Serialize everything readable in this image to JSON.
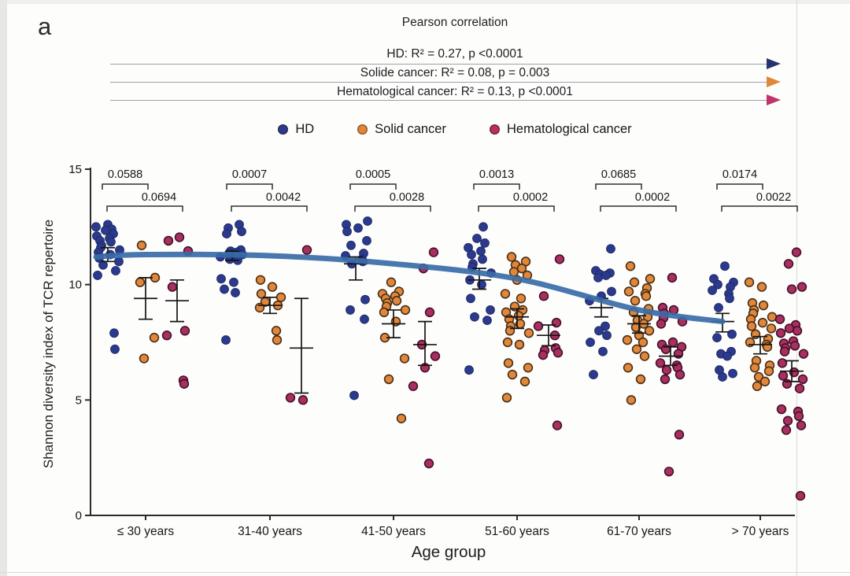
{
  "panel_label": "a",
  "header": {
    "title": "Pearson correlation",
    "arrows": [
      {
        "label": "HD: R² = 0.27,  p <0.0001",
        "color": "#27336e"
      },
      {
        "label": "Solide cancer: R² = 0.08,  p = 0.003",
        "color": "#e0873c"
      },
      {
        "label": "Hematological cancer: R² = 0.13, p <0.0001",
        "color": "#c2326b"
      }
    ]
  },
  "legend": [
    {
      "label": "HD",
      "color": "#2c3a8e"
    },
    {
      "label": "Solid cancer",
      "color": "#e0873c"
    },
    {
      "label": "Hematological cancer",
      "color": "#b82f62"
    }
  ],
  "chart_data": {
    "type": "scatter",
    "xlabel": "Age group",
    "ylabel": "Shannon diversity index of TCR repertoire",
    "ylim": [
      0,
      15
    ],
    "yticks": [
      0,
      5,
      10,
      15
    ],
    "grid": false,
    "categories": [
      "≤ 30 years",
      "31-40 years",
      "41-50 years",
      "51-60 years",
      "61-70 years",
      "> 70 years"
    ],
    "series": [
      {
        "name": "HD",
        "color": "#2c3a8e",
        "stroke": "#1f2a66",
        "points": [
          [
            12.6,
            12.5,
            12.4,
            12.35,
            12.2,
            12.1,
            12.0,
            11.9,
            11.85,
            11.7,
            11.6,
            11.5,
            11.4,
            11.3,
            11.15,
            11.0,
            10.85,
            10.6,
            10.4,
            7.9,
            7.2
          ],
          [
            12.6,
            12.45,
            12.3,
            12.2,
            11.5,
            11.45,
            11.4,
            11.35,
            11.3,
            11.25,
            11.2,
            11.15,
            11.1,
            11.05,
            10.25,
            10.1,
            9.8,
            9.65,
            7.6
          ],
          [
            12.75,
            12.6,
            12.45,
            12.3,
            11.9,
            11.7,
            11.35,
            11.25,
            11.1,
            11.0,
            10.9,
            9.35,
            8.9,
            8.5,
            5.2
          ],
          [
            12.5,
            12.0,
            11.8,
            11.6,
            11.45,
            11.3,
            11.1,
            10.9,
            10.75,
            10.5,
            10.2,
            10.0,
            9.4,
            8.9,
            8.6,
            8.45,
            6.3
          ],
          [
            11.55,
            10.6,
            10.5,
            10.45,
            10.4,
            10.3,
            9.7,
            9.5,
            9.3,
            8.2,
            8.0,
            7.8,
            7.5,
            7.1,
            6.1
          ],
          [
            10.8,
            10.25,
            10.1,
            10.0,
            9.9,
            9.75,
            9.6,
            9.4,
            9.0,
            7.85,
            7.7,
            7.1,
            7.0,
            6.9,
            6.3,
            6.15,
            6.0
          ]
        ],
        "errorbars": [
          [
            11.0,
            11.3,
            11.6
          ],
          [
            11.05,
            11.25,
            11.45
          ],
          [
            10.2,
            10.9,
            11.2
          ],
          [
            9.8,
            10.2,
            10.7
          ],
          [
            8.6,
            9.0,
            9.4
          ],
          [
            7.95,
            8.4,
            8.75
          ]
        ]
      },
      {
        "name": "Solid cancer",
        "color": "#e0873c",
        "stroke": "#4a2f15",
        "points": [
          [
            11.7,
            10.3,
            10.1,
            7.7,
            6.8
          ],
          [
            10.2,
            9.9,
            9.6,
            9.45,
            9.25,
            9.1,
            9.0,
            8.0,
            7.6
          ],
          [
            10.1,
            9.7,
            9.6,
            9.5,
            9.4,
            9.3,
            9.2,
            9.05,
            8.9,
            8.8,
            8.4,
            7.7,
            6.8,
            5.9,
            4.2
          ],
          [
            11.2,
            11.0,
            10.85,
            10.7,
            10.55,
            10.4,
            10.2,
            9.6,
            9.4,
            9.05,
            8.9,
            8.8,
            8.65,
            8.5,
            8.3,
            8.2,
            8.0,
            7.9,
            7.5,
            7.4,
            6.6,
            6.4,
            6.1,
            5.8,
            5.1
          ],
          [
            10.8,
            10.25,
            10.1,
            9.85,
            9.7,
            9.6,
            9.5,
            9.3,
            8.95,
            8.8,
            8.6,
            8.45,
            8.3,
            8.15,
            8.0,
            7.8,
            7.6,
            7.5,
            7.2,
            6.9,
            6.4,
            5.9,
            5.0
          ],
          [
            10.1,
            9.9,
            9.2,
            9.1,
            8.9,
            8.75,
            8.6,
            8.5,
            8.35,
            8.2,
            8.1,
            7.85,
            7.65,
            7.5,
            7.4,
            7.3,
            6.7,
            6.5,
            6.4,
            6.25,
            6.0,
            5.8,
            5.6
          ]
        ],
        "errorbars": [
          [
            8.5,
            9.4,
            10.3
          ],
          [
            8.75,
            9.1,
            9.45
          ],
          [
            7.7,
            8.3,
            8.9
          ],
          [
            8.1,
            8.6,
            8.95
          ],
          [
            7.9,
            8.3,
            8.65
          ],
          [
            7.0,
            7.4,
            7.75
          ]
        ]
      },
      {
        "name": "Hematological cancer",
        "color": "#a8305e",
        "stroke": "#45112b",
        "points": [
          [
            12.05,
            11.9,
            11.45,
            9.9,
            8.0,
            7.8,
            5.85,
            5.7
          ],
          [
            11.5,
            5.1,
            5.0
          ],
          [
            11.4,
            10.7,
            8.8,
            7.4,
            6.9,
            6.4,
            5.6,
            2.25
          ],
          [
            11.1,
            9.5,
            8.35,
            8.2,
            7.8,
            7.25,
            7.15,
            7.05,
            6.95,
            3.9
          ],
          [
            10.3,
            9.0,
            8.9,
            8.75,
            8.55,
            8.4,
            8.3,
            7.5,
            7.4,
            7.3,
            7.2,
            7.0,
            6.6,
            6.5,
            6.4,
            6.3,
            6.1,
            5.9,
            3.5,
            1.9
          ],
          [
            11.4,
            10.9,
            9.9,
            9.8,
            8.5,
            8.25,
            8.1,
            8.0,
            7.9,
            7.55,
            7.45,
            7.35,
            7.25,
            7.1,
            7.0,
            6.6,
            6.2,
            6.05,
            5.9,
            5.7,
            5.5,
            4.6,
            4.5,
            4.3,
            4.1,
            3.9,
            3.7,
            0.85
          ]
        ],
        "errorbars": [
          [
            8.4,
            9.3,
            10.2
          ],
          [
            5.3,
            7.25,
            9.4
          ],
          [
            6.5,
            7.4,
            8.4
          ],
          [
            7.35,
            7.8,
            8.25
          ],
          [
            6.5,
            6.9,
            7.3
          ],
          [
            5.8,
            6.25,
            6.7
          ]
        ]
      }
    ],
    "comparisons": [
      {
        "category": "≤ 30 years",
        "hd_vs_solid": "0.0588",
        "hd_vs_hema": "0.0694"
      },
      {
        "category": "31-40 years",
        "hd_vs_solid": "0.0007",
        "hd_vs_hema": "0.0042"
      },
      {
        "category": "41-50 years",
        "hd_vs_solid": "0.0005",
        "hd_vs_hema": "0.0028"
      },
      {
        "category": "51-60 years",
        "hd_vs_solid": "0.0013",
        "hd_vs_hema": "0.0002"
      },
      {
        "category": "61-70 years",
        "hd_vs_solid": "0.0685",
        "hd_vs_hema": "0.0002"
      },
      {
        "category": "> 70 years",
        "hd_vs_solid": "0.0174",
        "hd_vs_hema": "0.0022"
      }
    ],
    "trend": {
      "series": "HD",
      "color": "#3a6da8",
      "values": [
        11.2,
        11.3,
        11.25,
        10.9,
        10.25,
        8.9,
        8.4
      ]
    }
  }
}
